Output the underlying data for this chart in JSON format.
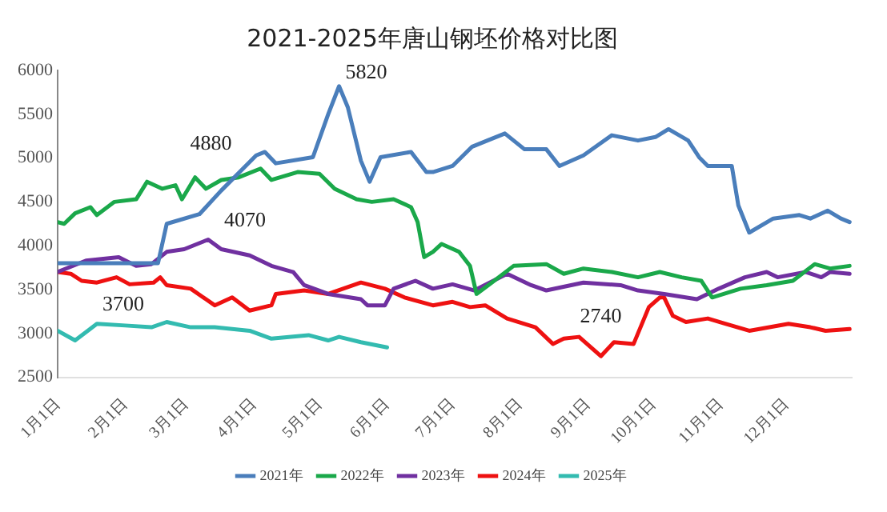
{
  "chart_data": {
    "type": "line",
    "title": "2021-2025年唐山钢坯价格对比图",
    "xlim": [
      "--01-01",
      "--12-31"
    ],
    "xticks": [
      {
        "value": "--01-01",
        "label": "1月1日"
      },
      {
        "value": "--02-01",
        "label": "2月1日"
      },
      {
        "value": "--03-01",
        "label": "3月1日"
      },
      {
        "value": "--04-01",
        "label": "4月1日"
      },
      {
        "value": "--05-01",
        "label": "5月1日"
      },
      {
        "value": "--06-01",
        "label": "6月1日"
      },
      {
        "value": "--07-01",
        "label": "7月1日"
      },
      {
        "value": "--08-01",
        "label": "8月1日"
      },
      {
        "value": "--09-01",
        "label": "9月1日"
      },
      {
        "value": "--10-01",
        "label": "10月1日"
      },
      {
        "value": "--11-01",
        "label": "11月1日"
      },
      {
        "value": "--12-01",
        "label": "12月1日"
      }
    ],
    "ylim": [
      2500,
      6000
    ],
    "yticks": [
      2500,
      3000,
      3500,
      4000,
      4500,
      5000,
      5500,
      6000
    ],
    "grid": false,
    "legend": "bottom",
    "marker": "none",
    "line_style": "solid",
    "series": [
      {
        "name": "2021年",
        "color": "#4a7ebb",
        "x": [
          "--01-01",
          "--02-16",
          "--02-20",
          "--03-07",
          "--03-17",
          "--04-02",
          "--04-06",
          "--04-11",
          "--04-28",
          "--05-05",
          "--05-10",
          "--05-14",
          "--05-20",
          "--05-24",
          "--05-29",
          "--06-12",
          "--06-19",
          "--06-22",
          "--07-01",
          "--07-10",
          "--07-17",
          "--07-25",
          "--08-03",
          "--08-13",
          "--08-19",
          "--08-30",
          "--09-12",
          "--09-24",
          "--10-02",
          "--10-08",
          "--10-17",
          "--10-22",
          "--10-26",
          "--11-06",
          "--11-09",
          "--11-14",
          "--11-25",
          "--12-07",
          "--12-12",
          "--12-20",
          "--12-26",
          "--12-30"
        ],
        "values": [
          3800,
          3800,
          4250,
          4360,
          4630,
          5030,
          5070,
          4940,
          5010,
          5500,
          5820,
          5580,
          4970,
          4730,
          5010,
          5070,
          4840,
          4840,
          4910,
          5130,
          5200,
          5280,
          5100,
          5100,
          4910,
          5030,
          5260,
          5200,
          5240,
          5330,
          5200,
          5010,
          4910,
          4910,
          4460,
          4150,
          4310,
          4350,
          4310,
          4400,
          4310,
          4270
        ]
      },
      {
        "name": "2022年",
        "color": "#1aa84a",
        "x": [
          "--01-01",
          "--01-04",
          "--01-09",
          "--01-16",
          "--01-19",
          "--01-27",
          "--02-06",
          "--02-11",
          "--02-18",
          "--02-24",
          "--02-27",
          "--03-05",
          "--03-10",
          "--03-17",
          "--03-25",
          "--04-04",
          "--04-09",
          "--04-21",
          "--05-01",
          "--05-08",
          "--05-18",
          "--05-25",
          "--06-04",
          "--06-12",
          "--06-15",
          "--06-18",
          "--06-22",
          "--06-26",
          "--07-04",
          "--07-09",
          "--07-12",
          "--07-19",
          "--07-29",
          "--08-13",
          "--08-21",
          "--08-30",
          "--09-12",
          "--09-24",
          "--10-04",
          "--10-14",
          "--10-23",
          "--10-28",
          "--11-10",
          "--11-22",
          "--12-04",
          "--12-14",
          "--12-21",
          "--12-30"
        ],
        "values": [
          4270,
          4250,
          4370,
          4440,
          4350,
          4500,
          4530,
          4730,
          4650,
          4690,
          4530,
          4780,
          4650,
          4750,
          4780,
          4880,
          4750,
          4840,
          4820,
          4650,
          4530,
          4500,
          4530,
          4440,
          4270,
          3870,
          3930,
          4020,
          3930,
          3770,
          3450,
          3580,
          3770,
          3790,
          3680,
          3740,
          3700,
          3640,
          3700,
          3640,
          3600,
          3410,
          3510,
          3550,
          3600,
          3790,
          3740,
          3770
        ]
      },
      {
        "name": "2023年",
        "color": "#7030a0",
        "x": [
          "--01-01",
          "--01-14",
          "--01-29",
          "--02-06",
          "--02-13",
          "--02-20",
          "--02-28",
          "--03-11",
          "--03-17",
          "--03-30",
          "--04-09",
          "--04-19",
          "--04-24",
          "--05-05",
          "--05-20",
          "--05-23",
          "--05-31",
          "--06-04",
          "--06-14",
          "--06-22",
          "--07-01",
          "--07-11",
          "--07-26",
          "--08-06",
          "--08-13",
          "--08-30",
          "--09-16",
          "--09-24",
          "--10-06",
          "--10-21",
          "--10-31",
          "--11-12",
          "--11-22",
          "--11-27",
          "--12-10",
          "--12-17",
          "--12-21",
          "--12-30"
        ],
        "values": [
          3700,
          3830,
          3870,
          3770,
          3790,
          3930,
          3960,
          4070,
          3960,
          3890,
          3770,
          3700,
          3550,
          3450,
          3390,
          3320,
          3320,
          3510,
          3600,
          3510,
          3560,
          3490,
          3680,
          3550,
          3490,
          3580,
          3550,
          3490,
          3450,
          3390,
          3510,
          3640,
          3700,
          3640,
          3700,
          3640,
          3700,
          3680
        ]
      },
      {
        "name": "2024年",
        "color": "#ee1111",
        "x": [
          "--01-01",
          "--01-07",
          "--01-12",
          "--01-19",
          "--01-28",
          "--02-03",
          "--02-14",
          "--02-17",
          "--02-20",
          "--03-03",
          "--03-14",
          "--03-22",
          "--03-30",
          "--04-09",
          "--04-11",
          "--04-24",
          "--05-05",
          "--05-20",
          "--05-31",
          "--06-09",
          "--06-22",
          "--07-01",
          "--07-09",
          "--07-16",
          "--07-26",
          "--08-08",
          "--08-16",
          "--08-21",
          "--08-28",
          "--09-07",
          "--09-13",
          "--09-22",
          "--09-29",
          "--10-04",
          "--10-06",
          "--10-10",
          "--10-16",
          "--10-26",
          "--11-03",
          "--11-14",
          "--12-02",
          "--12-12",
          "--12-19",
          "--12-30"
        ],
        "values": [
          3700,
          3680,
          3600,
          3580,
          3640,
          3560,
          3580,
          3640,
          3550,
          3510,
          3320,
          3410,
          3260,
          3320,
          3450,
          3490,
          3450,
          3580,
          3510,
          3410,
          3320,
          3360,
          3300,
          3320,
          3170,
          3070,
          2880,
          2940,
          2960,
          2740,
          2900,
          2880,
          3300,
          3410,
          3410,
          3200,
          3130,
          3170,
          3110,
          3030,
          3110,
          3070,
          3030,
          3050
        ]
      },
      {
        "name": "2025年",
        "color": "#33bbb0",
        "x": [
          "--01-01",
          "--01-09",
          "--01-19",
          "--02-01",
          "--02-13",
          "--02-20",
          "--03-03",
          "--03-14",
          "--03-30",
          "--04-09",
          "--04-26",
          "--05-05",
          "--05-10",
          "--05-20",
          "--06-01"
        ],
        "values": [
          3030,
          2920,
          3110,
          3090,
          3070,
          3130,
          3070,
          3070,
          3030,
          2940,
          2980,
          2920,
          2960,
          2900,
          2840
        ]
      }
    ],
    "annotations": [
      {
        "text": "5820",
        "x": "--05-10",
        "y": 5820
      },
      {
        "text": "4880",
        "x": "--04-04",
        "y": 4880
      },
      {
        "text": "4070",
        "x": "--03-11",
        "y": 4070
      },
      {
        "text": "3700",
        "x": "--01-01",
        "y": 3700
      },
      {
        "text": "2740",
        "x": "--09-07",
        "y": 2740
      }
    ]
  }
}
